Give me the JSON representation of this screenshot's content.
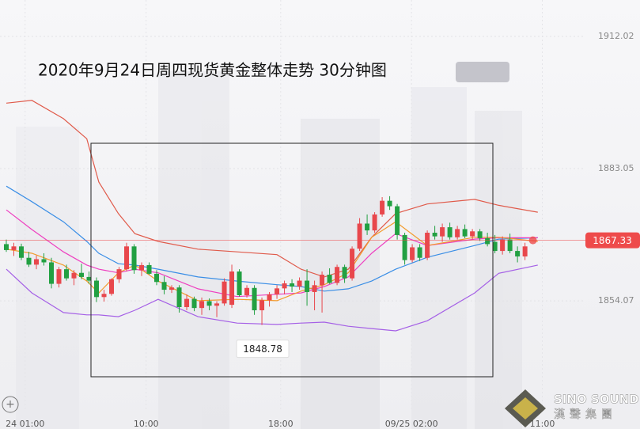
{
  "chart_data": {
    "type": "candlestick",
    "title": "2020年9月24日周四现货黄金整体走势 30分钟图",
    "up_color": "#e8474c",
    "down_color": "#22a042",
    "open": [
      1866.5,
      1865.2,
      1866.0,
      1863.5,
      1862.0,
      1863.2,
      1862.5,
      1857.8,
      1861.0,
      1859.0,
      1860.2,
      1859.3,
      1858.5,
      1854.9,
      1855.6,
      1858.8,
      1861.0,
      1866.0,
      1860.8,
      1861.9,
      1860.0,
      1858.2,
      1856.5,
      1857.0,
      1852.7,
      1854.5,
      1852.5,
      1854.0,
      1853.0,
      1853.5,
      1853.2,
      1860.5,
      1855.3,
      1856.9,
      1852.0,
      1854.2,
      1855.5,
      1856.8,
      1857.9,
      1857.2,
      1858.5,
      1856.0,
      1857.5,
      1859.8,
      1858.0,
      1861.5,
      1859.0,
      1865.5,
      1871.0,
      1869.5,
      1873.0,
      1876.0,
      1874.8,
      1868.5,
      1863.0,
      1865.8,
      1863.5,
      1869.0,
      1868.2,
      1870.2,
      1868.0,
      1869.8,
      1868.2,
      1869.3,
      1867.8,
      1867.0,
      1865.0,
      1867.5,
      1865.0,
      1863.8
    ],
    "high": [
      1867.5,
      1866.8,
      1866.6,
      1864.8,
      1864.0,
      1864.5,
      1863.5,
      1861.5,
      1862.0,
      1860.8,
      1862.2,
      1860.5,
      1859.2,
      1856.5,
      1859.0,
      1861.5,
      1866.8,
      1866.5,
      1862.5,
      1862.5,
      1860.8,
      1859.5,
      1857.5,
      1857.5,
      1855.5,
      1855.0,
      1854.8,
      1854.6,
      1854.0,
      1859.0,
      1862.0,
      1861.0,
      1857.5,
      1857.5,
      1854.8,
      1856.0,
      1857.5,
      1858.5,
      1858.8,
      1859.2,
      1861.0,
      1858.5,
      1860.5,
      1861.2,
      1862.0,
      1862.0,
      1866.0,
      1872.2,
      1873.0,
      1873.5,
      1876.8,
      1877.0,
      1875.3,
      1869.0,
      1866.5,
      1866.5,
      1869.5,
      1870.5,
      1871.0,
      1871.2,
      1870.5,
      1870.8,
      1869.8,
      1869.8,
      1869.0,
      1868.5,
      1868.2,
      1868.8,
      1866.0,
      1866.8
    ],
    "low": [
      1864.8,
      1863.9,
      1863.0,
      1861.5,
      1861.0,
      1861.8,
      1856.8,
      1857.0,
      1858.5,
      1857.5,
      1858.8,
      1857.8,
      1853.8,
      1853.9,
      1855.2,
      1858.0,
      1860.5,
      1860.0,
      1859.5,
      1859.8,
      1857.5,
      1855.5,
      1855.8,
      1851.5,
      1852.0,
      1851.8,
      1851.0,
      1852.0,
      1850.5,
      1853.0,
      1852.5,
      1855.0,
      1854.8,
      1851.0,
      1848.78,
      1852.8,
      1854.5,
      1855.5,
      1856.0,
      1856.5,
      1853.0,
      1852.0,
      1851.5,
      1857.8,
      1857.5,
      1858.0,
      1858.5,
      1865.0,
      1868.5,
      1869.0,
      1872.5,
      1874.0,
      1867.5,
      1862.0,
      1862.5,
      1862.8,
      1863.0,
      1867.5,
      1867.0,
      1867.5,
      1867.5,
      1867.8,
      1867.5,
      1867.2,
      1866.0,
      1864.5,
      1864.2,
      1864.5,
      1862.5,
      1863.0
    ],
    "close": [
      1865.2,
      1866.0,
      1863.5,
      1862.0,
      1863.2,
      1862.5,
      1857.8,
      1861.0,
      1859.0,
      1860.2,
      1859.3,
      1858.5,
      1854.9,
      1855.6,
      1858.8,
      1861.0,
      1866.0,
      1860.8,
      1861.9,
      1860.0,
      1858.2,
      1856.5,
      1857.0,
      1852.7,
      1854.5,
      1852.5,
      1854.0,
      1853.0,
      1853.5,
      1858.3,
      1860.5,
      1855.3,
      1856.9,
      1852.0,
      1854.2,
      1855.5,
      1856.8,
      1857.9,
      1857.2,
      1858.5,
      1856.0,
      1857.5,
      1859.8,
      1858.0,
      1861.5,
      1859.0,
      1865.5,
      1871.0,
      1869.5,
      1873.0,
      1876.0,
      1874.8,
      1868.5,
      1863.0,
      1865.8,
      1863.5,
      1869.0,
      1868.2,
      1870.2,
      1868.0,
      1869.8,
      1868.2,
      1869.3,
      1867.8,
      1866.5,
      1865.0,
      1867.5,
      1865.0,
      1863.8,
      1866.0
    ],
    "lines": [
      {
        "color": "#e05a4a",
        "x": [
          0,
          3.4,
          7.6,
          10.7,
          12.3,
          14.9,
          17.1,
          20.2,
          25.5,
          30.7,
          36,
          39.2,
          42.3,
          45.5,
          48.6,
          51.8,
          56,
          62.3,
          65.5,
          70.7
        ],
        "values": [
          1897.4,
          1898.0,
          1894.0,
          1889.6,
          1880.1,
          1873.2,
          1868.8,
          1867.1,
          1865.4,
          1864.8,
          1864.2,
          1861.0,
          1859.3,
          1861.0,
          1868.0,
          1873.2,
          1875.3,
          1876.3,
          1875.0,
          1873.5
        ]
      },
      {
        "color": "#a560e6",
        "x": [
          0,
          3.4,
          7.6,
          10.7,
          12.3,
          14.9,
          17.1,
          20.2,
          25.5,
          30.7,
          36,
          39.2,
          42.3,
          45.5,
          48.6,
          51.8,
          56,
          62.3,
          65.5,
          70.7
        ],
        "values": [
          1861.0,
          1855.8,
          1851.5,
          1851.0,
          1851.0,
          1850.6,
          1852.0,
          1854.4,
          1850.6,
          1849.2,
          1848.9,
          1849.2,
          1849.4,
          1848.5,
          1848.0,
          1847.5,
          1849.7,
          1855.8,
          1860.1,
          1861.9
        ]
      },
      {
        "color": "#3a8ee6",
        "x": [
          0,
          3.4,
          7.6,
          10.7,
          12.3,
          14.9,
          17.1,
          20.2,
          25.5,
          30.7,
          36,
          39.2,
          42.3,
          45.5,
          48.6,
          51.8,
          56,
          62.3,
          65.5,
          70.7
        ],
        "values": [
          1879.2,
          1875.8,
          1871.4,
          1867.1,
          1864.5,
          1862.2,
          1861.9,
          1861.0,
          1859.3,
          1858.4,
          1857.6,
          1857.2,
          1856.2,
          1856.7,
          1858.4,
          1861.0,
          1863.6,
          1866.2,
          1867.6,
          1867.9
        ]
      },
      {
        "color": "#ee3fc0",
        "x": [
          0,
          3.4,
          7.6,
          10.7,
          12.3,
          14.9,
          17.1,
          20.2,
          25.5,
          30.7,
          36,
          39.2,
          42.3,
          45.5,
          48.6,
          51.8,
          56,
          62.3,
          65.5,
          70.7
        ],
        "values": [
          1874.0,
          1869.7,
          1864.8,
          1861.9,
          1861.0,
          1860.2,
          1861.0,
          1860.2,
          1856.7,
          1855.0,
          1855.5,
          1855.8,
          1857.2,
          1859.3,
          1864.5,
          1868.8,
          1866.2,
          1867.6,
          1867.9,
          1867.9
        ]
      },
      {
        "color": "#f39a2b",
        "x": [
          0,
          3.4,
          7.6,
          10.7,
          12.3,
          14.9,
          17.1,
          20.2,
          25.5,
          30.7,
          36,
          39.2,
          42.3,
          45.5,
          48.6,
          51.8,
          56,
          62.3,
          65.5,
          70.7
        ],
        "values": [
          1865.4,
          1864.5,
          1861.9,
          1858.4,
          1855.8,
          1860.2,
          1861.9,
          1858.4,
          1854.1,
          1854.4,
          1854.1,
          1856.2,
          1857.6,
          1860.2,
          1868.0,
          1871.4,
          1866.2,
          1868.0,
          1868.0,
          1867.1
        ]
      }
    ],
    "current_price": 1867.33,
    "current_price_color": "#ee4b4b",
    "low_label": 1848.78,
    "low_label_index": 34,
    "ylim": [
      1829.8,
      1920.0
    ],
    "yticks": [
      1854.07,
      1883.05,
      1912.02
    ],
    "xlim": [
      -0.84,
      76.3
    ],
    "xticks": [
      {
        "value": 2.5,
        "label": "24 01:00"
      },
      {
        "value": 18.6,
        "label": "10:00"
      },
      {
        "value": 36.5,
        "label": "18:00"
      },
      {
        "value": 53.9,
        "label": "09/25 02:00"
      },
      {
        "value": 71.3,
        "label": "11:00"
      }
    ],
    "grid": true
  },
  "watermark": {
    "brand": "SINO SOUND",
    "brand_cn": "漢聲集團"
  }
}
